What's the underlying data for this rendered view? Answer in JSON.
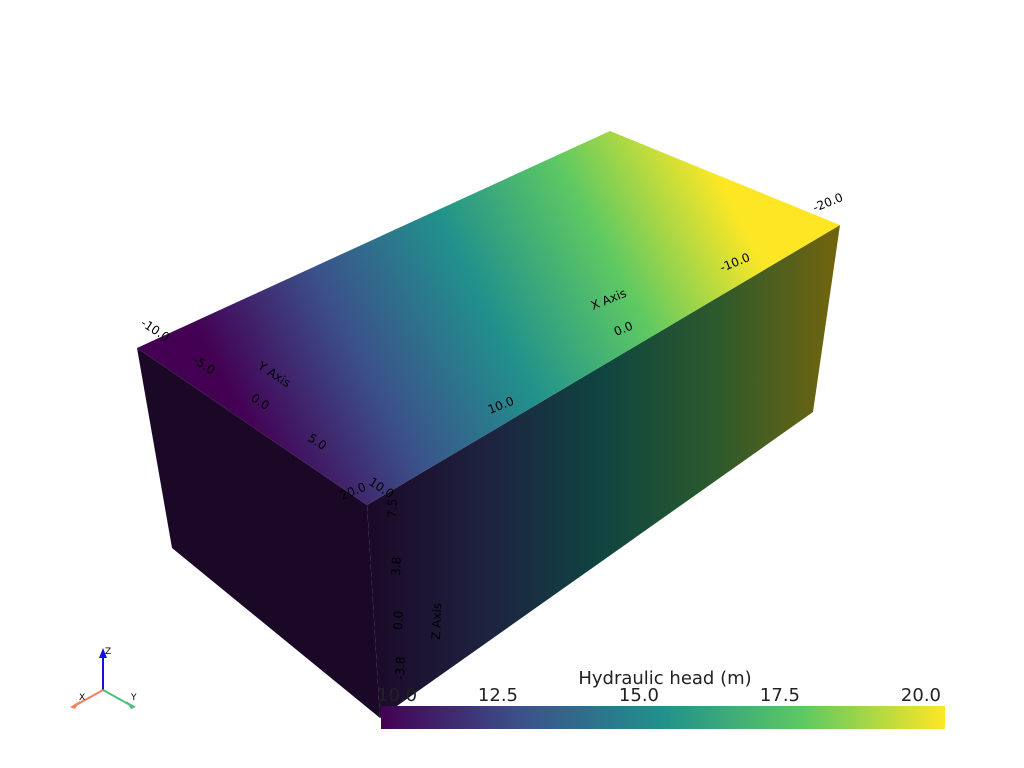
{
  "axes": {
    "x_title": "X Axis",
    "y_title": "Y Axis",
    "z_title": "Z Axis",
    "x_ticks": [
      "-20.0",
      "-10.0",
      "0.0",
      "10.0",
      "20.0"
    ],
    "y_ticks": [
      "-10.0",
      "-5.0",
      "0.0",
      "5.0",
      "10.0"
    ],
    "z_ticks": [
      "-3.8",
      "0.0",
      "3.8",
      "7.5"
    ]
  },
  "orientation": {
    "x": "X",
    "y": "Y",
    "z": "Z"
  },
  "scalar_bar": {
    "title": "Hydraulic head (m)",
    "range": [
      10,
      20
    ],
    "ticks": [
      {
        "value": 10,
        "label": "10.0"
      },
      {
        "value": 12.5,
        "label": "12.5"
      },
      {
        "value": 15,
        "label": "15.0"
      },
      {
        "value": 17.5,
        "label": "17.5"
      },
      {
        "value": 20,
        "label": "20.0"
      }
    ]
  }
}
